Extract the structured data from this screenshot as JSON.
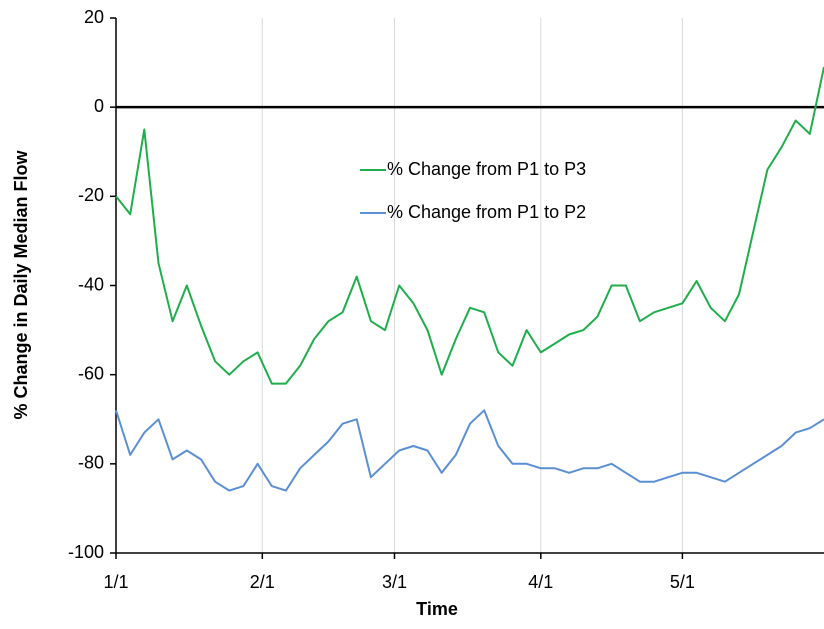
{
  "chart_data": {
    "type": "line",
    "x_label": "Time",
    "y_label": "% Change in Daily Median Flow",
    "x": [
      "1/1",
      "1/4",
      "1/7",
      "1/10",
      "1/13",
      "1/16",
      "1/19",
      "1/22",
      "1/25",
      "1/28",
      "1/31",
      "2/3",
      "2/6",
      "2/9",
      "2/12",
      "2/15",
      "2/18",
      "2/21",
      "2/24",
      "2/27",
      "3/2",
      "3/5",
      "3/8",
      "3/11",
      "3/14",
      "3/17",
      "3/20",
      "3/23",
      "3/26",
      "3/29",
      "4/1",
      "4/4",
      "4/7",
      "4/10",
      "4/13",
      "4/16",
      "4/19",
      "4/22",
      "4/25",
      "4/28",
      "5/1",
      "5/4",
      "5/7",
      "5/10",
      "5/13",
      "5/16",
      "5/19",
      "5/22",
      "5/25",
      "5/28",
      "5/31"
    ],
    "series": [
      {
        "name": "% Change from P1 to P3",
        "color": "#1fae4b",
        "values": [
          -20,
          -24,
          -5,
          -35,
          -48,
          -40,
          -49,
          -57,
          -60,
          -57,
          -55,
          -62,
          -62,
          -58,
          -52,
          -48,
          -46,
          -38,
          -48,
          -50,
          -40,
          -44,
          -50,
          -60,
          -52,
          -45,
          -46,
          -55,
          -58,
          -50,
          -55,
          -53,
          -51,
          -50,
          -47,
          -40,
          -40,
          -48,
          -46,
          -45,
          -44,
          -39,
          -45,
          -48,
          -42,
          -28,
          -14,
          -9,
          -3,
          -6,
          9
        ]
      },
      {
        "name": "% Change from P1 to P2",
        "color": "#5b8fd4",
        "values": [
          -68,
          -78,
          -73,
          -70,
          -79,
          -77,
          -79,
          -84,
          -86,
          -85,
          -80,
          -85,
          -86,
          -81,
          -78,
          -75,
          -71,
          -70,
          -83,
          -80,
          -77,
          -76,
          -77,
          -82,
          -78,
          -71,
          -68,
          -76,
          -80,
          -80,
          -81,
          -81,
          -82,
          -81,
          -81,
          -80,
          -82,
          -84,
          -84,
          -83,
          -82,
          -82,
          -83,
          -84,
          -82,
          -80,
          -78,
          -76,
          -73,
          -72,
          -70
        ]
      }
    ],
    "xlim": [
      "1/1",
      "5/31"
    ],
    "xticks": [
      "1/1",
      "2/1",
      "3/1",
      "4/1",
      "5/1"
    ],
    "ylim": [
      -100,
      20
    ],
    "yticks": [
      -100,
      -80,
      -60,
      -40,
      -20,
      0,
      20
    ],
    "hline": 0,
    "grid": true,
    "legend": "center"
  }
}
